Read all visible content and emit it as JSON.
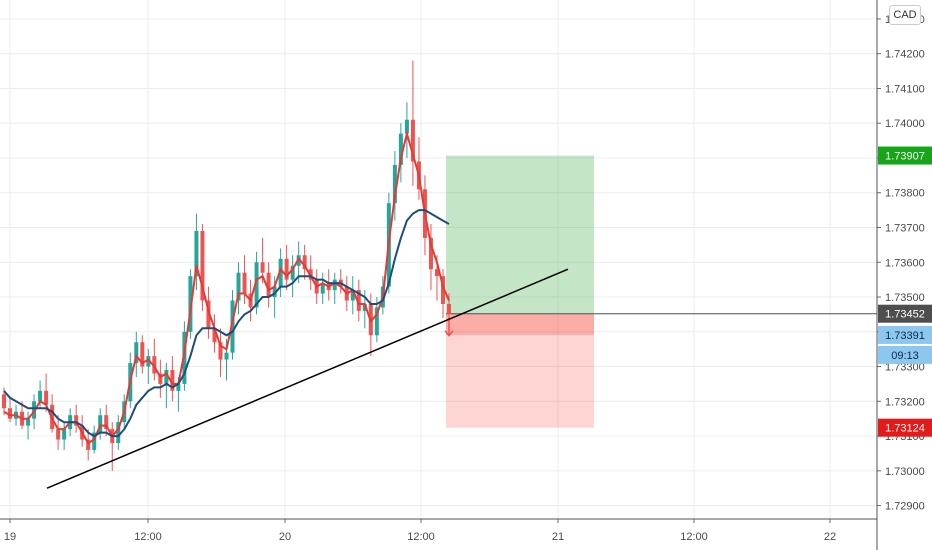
{
  "currency_label": "CAD",
  "chart_data": {
    "type": "candlestick",
    "symbol_currency": "CAD",
    "x_ticks": [
      "19",
      "12:00",
      "20",
      "12:00",
      "21",
      "12:00",
      "22"
    ],
    "y_ticks": [
      "1.74300",
      "1.74200",
      "1.74100",
      "1.74000",
      "1.73900",
      "1.73800",
      "1.73700",
      "1.73600",
      "1.73500",
      "1.73400",
      "1.73300",
      "1.73200",
      "1.73100",
      "1.73000",
      "1.72900"
    ],
    "ylim": [
      1.7287,
      1.7432
    ],
    "colors": {
      "up": "#26a69a",
      "down": "#ef5350",
      "fast_ma": "#e53935",
      "slow_ma": "#1e4d7b",
      "grid": "#e9ecf0",
      "trendline": "#000000"
    },
    "ohlc": [
      [
        1.7322,
        1.7324,
        1.7316,
        1.7318
      ],
      [
        1.7318,
        1.7321,
        1.7314,
        1.7315
      ],
      [
        1.7315,
        1.7319,
        1.7313,
        1.7317
      ],
      [
        1.7317,
        1.732,
        1.7312,
        1.7313
      ],
      [
        1.7313,
        1.7317,
        1.7309,
        1.7315
      ],
      [
        1.7315,
        1.7322,
        1.7312,
        1.732
      ],
      [
        1.732,
        1.7326,
        1.7318,
        1.7323
      ],
      [
        1.7323,
        1.7328,
        1.7317,
        1.7319
      ],
      [
        1.7319,
        1.7322,
        1.7311,
        1.7312
      ],
      [
        1.7312,
        1.7316,
        1.7306,
        1.7309
      ],
      [
        1.7309,
        1.7314,
        1.7306,
        1.7312
      ],
      [
        1.7312,
        1.7318,
        1.731,
        1.7316
      ],
      [
        1.7316,
        1.7319,
        1.7311,
        1.7313
      ],
      [
        1.7313,
        1.7316,
        1.7307,
        1.7309
      ],
      [
        1.7309,
        1.7312,
        1.7303,
        1.7306
      ],
      [
        1.7306,
        1.7313,
        1.7305,
        1.7311
      ],
      [
        1.7311,
        1.7318,
        1.7309,
        1.7316
      ],
      [
        1.7316,
        1.7319,
        1.731,
        1.7312
      ],
      [
        1.7312,
        1.7314,
        1.73,
        1.7308
      ],
      [
        1.7308,
        1.7316,
        1.7306,
        1.7314
      ],
      [
        1.7314,
        1.7322,
        1.7312,
        1.732
      ],
      [
        1.732,
        1.7334,
        1.7318,
        1.7331
      ],
      [
        1.7331,
        1.734,
        1.7327,
        1.7337
      ],
      [
        1.7337,
        1.7339,
        1.7328,
        1.733
      ],
      [
        1.733,
        1.7335,
        1.7325,
        1.7333
      ],
      [
        1.7333,
        1.7338,
        1.7326,
        1.7328
      ],
      [
        1.7328,
        1.7332,
        1.7321,
        1.7325
      ],
      [
        1.7325,
        1.7331,
        1.7318,
        1.7329
      ],
      [
        1.7329,
        1.7333,
        1.732,
        1.7323
      ],
      [
        1.7323,
        1.7327,
        1.7317,
        1.7325
      ],
      [
        1.7325,
        1.7343,
        1.7323,
        1.734
      ],
      [
        1.734,
        1.7358,
        1.7338,
        1.7356
      ],
      [
        1.7356,
        1.7374,
        1.7352,
        1.7369
      ],
      [
        1.7369,
        1.7371,
        1.7346,
        1.7349
      ],
      [
        1.7349,
        1.7353,
        1.7338,
        1.7341
      ],
      [
        1.7341,
        1.7345,
        1.7334,
        1.7337
      ],
      [
        1.7337,
        1.7341,
        1.7327,
        1.7332
      ],
      [
        1.7332,
        1.7338,
        1.7326,
        1.7334
      ],
      [
        1.7334,
        1.7352,
        1.7332,
        1.7349
      ],
      [
        1.7349,
        1.736,
        1.7345,
        1.7357
      ],
      [
        1.7357,
        1.7362,
        1.7348,
        1.7351
      ],
      [
        1.7351,
        1.7355,
        1.7343,
        1.7347
      ],
      [
        1.7347,
        1.7363,
        1.7345,
        1.736
      ],
      [
        1.736,
        1.7367,
        1.7354,
        1.7357
      ],
      [
        1.7357,
        1.736,
        1.7347,
        1.735
      ],
      [
        1.735,
        1.7356,
        1.7344,
        1.7353
      ],
      [
        1.7353,
        1.7364,
        1.735,
        1.7361
      ],
      [
        1.7361,
        1.7365,
        1.7352,
        1.7355
      ],
      [
        1.7355,
        1.7362,
        1.735,
        1.7359
      ],
      [
        1.7359,
        1.7366,
        1.7354,
        1.7362
      ],
      [
        1.7362,
        1.7365,
        1.7355,
        1.7358
      ],
      [
        1.7358,
        1.7362,
        1.7352,
        1.7355
      ],
      [
        1.7355,
        1.7358,
        1.7348,
        1.7351
      ],
      [
        1.7351,
        1.7357,
        1.7348,
        1.7354
      ],
      [
        1.7354,
        1.7358,
        1.7349,
        1.7352
      ],
      [
        1.7352,
        1.7357,
        1.7348,
        1.7355
      ],
      [
        1.7355,
        1.7358,
        1.7351,
        1.7353
      ],
      [
        1.7353,
        1.7356,
        1.7346,
        1.7349
      ],
      [
        1.7349,
        1.7356,
        1.7345,
        1.7352
      ],
      [
        1.7352,
        1.7355,
        1.7343,
        1.7346
      ],
      [
        1.7346,
        1.7352,
        1.7341,
        1.7348
      ],
      [
        1.7348,
        1.7351,
        1.7333,
        1.7339
      ],
      [
        1.7339,
        1.735,
        1.7337,
        1.7347
      ],
      [
        1.7347,
        1.7356,
        1.7345,
        1.7353
      ],
      [
        1.7353,
        1.738,
        1.7351,
        1.7377
      ],
      [
        1.7377,
        1.7392,
        1.7372,
        1.7388
      ],
      [
        1.7388,
        1.74,
        1.7383,
        1.7397
      ],
      [
        1.7397,
        1.7406,
        1.739,
        1.7401
      ],
      [
        1.7401,
        1.7418,
        1.7382,
        1.7389
      ],
      [
        1.7389,
        1.7396,
        1.7378,
        1.7381
      ],
      [
        1.7381,
        1.7385,
        1.7362,
        1.7367
      ],
      [
        1.7367,
        1.7371,
        1.7352,
        1.7358
      ],
      [
        1.7358,
        1.7362,
        1.7349,
        1.7356
      ],
      [
        1.7356,
        1.7358,
        1.7344,
        1.7348
      ],
      [
        1.7348,
        1.7351,
        1.734,
        1.7345
      ]
    ],
    "series": [
      {
        "name": "",
        "values": [
          1.7317,
          1.7316,
          1.7316,
          1.7315,
          1.7315,
          1.7317,
          1.732,
          1.7319,
          1.7315,
          1.7312,
          1.7312,
          1.7314,
          1.7314,
          1.7311,
          1.7308,
          1.7309,
          1.7313,
          1.7313,
          1.731,
          1.7312,
          1.7317,
          1.7326,
          1.7333,
          1.7331,
          1.7332,
          1.733,
          1.7327,
          1.7328,
          1.7325,
          1.7325,
          1.7334,
          1.7346,
          1.7359,
          1.7353,
          1.7346,
          1.7341,
          1.7336,
          1.7335,
          1.7343,
          1.7351,
          1.7351,
          1.7349,
          1.7355,
          1.7356,
          1.7352,
          1.7353,
          1.7358,
          1.7356,
          1.7358,
          1.7361,
          1.7359,
          1.7356,
          1.7353,
          1.7354,
          1.7353,
          1.7354,
          1.7353,
          1.7351,
          1.7352,
          1.7348,
          1.7348,
          1.7343,
          1.7345,
          1.735,
          1.7366,
          1.7379,
          1.739,
          1.7397,
          1.7391,
          1.7385,
          1.7374,
          1.7365,
          1.736,
          1.7353,
          1.7349
        ]
      },
      {
        "name": "",
        "values": [
          1.7323,
          1.7321,
          1.732,
          1.7319,
          1.7318,
          1.7318,
          1.7318,
          1.7318,
          1.7317,
          1.7315,
          1.7314,
          1.7314,
          1.7314,
          1.7313,
          1.7311,
          1.731,
          1.7311,
          1.7311,
          1.731,
          1.731,
          1.7312,
          1.7315,
          1.7319,
          1.7321,
          1.7323,
          1.7324,
          1.7324,
          1.7325,
          1.7324,
          1.7325,
          1.7328,
          1.7333,
          1.7339,
          1.7341,
          1.7341,
          1.7341,
          1.734,
          1.7339,
          1.734,
          1.7343,
          1.7345,
          1.7346,
          1.7348,
          1.735,
          1.735,
          1.7351,
          1.7353,
          1.7353,
          1.7354,
          1.7356,
          1.7356,
          1.7356,
          1.7355,
          1.7355,
          1.7354,
          1.7354,
          1.7354,
          1.7353,
          1.7352,
          1.7351,
          1.735,
          1.7348,
          1.7348,
          1.7349,
          1.7354,
          1.7361,
          1.7367,
          1.7372,
          1.7374,
          1.7375,
          1.7375,
          1.7374,
          1.7373,
          1.7372,
          1.7371
        ]
      }
    ],
    "trendline": {
      "start": [
        1.7295,
        "19 ~03:00"
      ],
      "end": [
        1.7358,
        "21 ~03:00"
      ]
    },
    "position_tool": {
      "type": "short",
      "entry": 1.73452,
      "target": 1.73907,
      "stop": 1.73124,
      "current": 1.73391
    },
    "price_labels": [
      {
        "value": "1.73907",
        "bg": "#16a516",
        "fg": "#ffffff"
      },
      {
        "value": "1.73452",
        "bg": "#4e4e4e",
        "fg": "#ffffff"
      },
      {
        "value": "1.73391",
        "bg": "#8cc7f0",
        "fg": "#102a43"
      },
      {
        "value": "09:13",
        "bg": "#8cc7f0",
        "fg": "#102a43"
      },
      {
        "value": "1.73124",
        "bg": "#e51b1b",
        "fg": "#ffffff"
      }
    ]
  }
}
